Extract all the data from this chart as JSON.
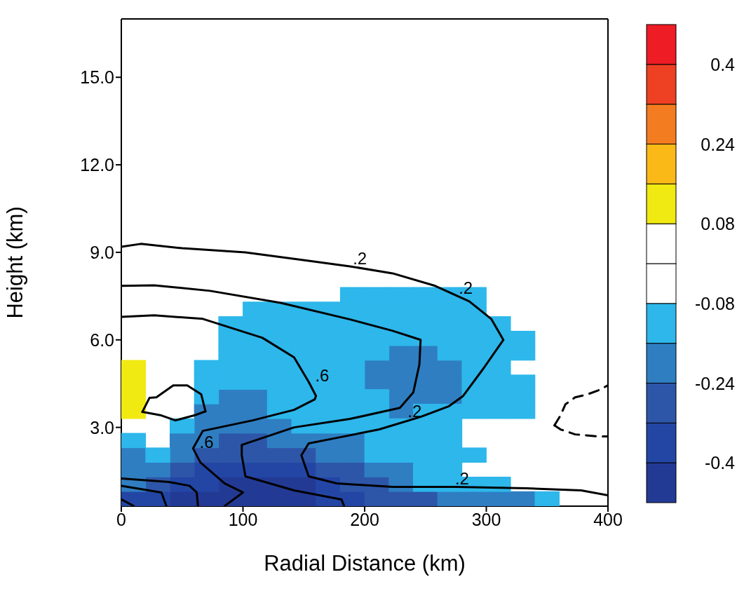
{
  "chart_data": {
    "type": "scatter",
    "xlabel": "Radial Distance (km)",
    "ylabel": "Height (km)",
    "xlim": [
      0,
      400
    ],
    "xticks": [
      0,
      100,
      200,
      300,
      400
    ],
    "ylim": [
      0.3,
      17
    ],
    "yticks": [
      {
        "value": 3,
        "label": "3.0"
      },
      {
        "value": 6,
        "label": "6.0"
      },
      {
        "value": 9,
        "label": "9.0"
      },
      {
        "value": 12,
        "label": "12.0"
      },
      {
        "value": 15,
        "label": "15.0"
      }
    ],
    "clim": [
      -0.48,
      0.48
    ],
    "cticks": [
      0.4,
      0.24,
      0.08,
      -0.08,
      -0.24,
      -0.4
    ],
    "colors": [
      "#233a95",
      "#2346a5",
      "#2e56a8",
      "#2f7ec2",
      "#2db7eb",
      "#ffffff",
      "#ffffff",
      "#f1e912",
      "#fbb917",
      "#f47c20",
      "#ee4123",
      "#ee1c25"
    ],
    "series": [
      {
        "type": "scatter",
        "marker": "square",
        "color": "#f1e912",
        "x": [
          10,
          10,
          10,
          10
        ],
        "values": [
          3.55,
          4.05,
          4.55,
          5.05
        ]
      },
      {
        "type": "scatter",
        "marker": "square",
        "color": "#233a95",
        "x": [
          50,
          70,
          90,
          110,
          130,
          150,
          90,
          110,
          130,
          150
        ],
        "values": [
          0.55,
          0.55,
          0.55,
          0.55,
          0.55,
          0.55,
          1.05,
          1.05,
          1.05,
          1.05
        ]
      },
      {
        "type": "scatter",
        "marker": "square",
        "color": "#2346a5",
        "x": [
          10,
          30,
          170,
          190,
          50,
          70,
          170,
          70,
          90,
          110,
          130,
          150
        ],
        "values": [
          0.55,
          0.55,
          0.55,
          0.55,
          1.05,
          1.05,
          1.05,
          1.55,
          1.55,
          1.55,
          1.55,
          1.55
        ]
      },
      {
        "type": "scatter",
        "marker": "square",
        "color": "#2e56a8",
        "x": [
          210,
          230,
          250,
          30,
          190,
          210,
          50,
          170,
          190,
          70,
          90,
          110,
          130,
          150,
          90,
          110
        ],
        "values": [
          0.55,
          0.55,
          0.55,
          1.05,
          1.05,
          1.05,
          1.55,
          1.55,
          1.55,
          2.05,
          2.05,
          2.05,
          2.05,
          2.05,
          2.55,
          2.55
        ]
      },
      {
        "type": "scatter",
        "marker": "square",
        "color": "#2f7ec2",
        "x": [
          270,
          290,
          310,
          330,
          10,
          230,
          10,
          30,
          210,
          230,
          10,
          50,
          170,
          190,
          50,
          70,
          130,
          150,
          170,
          190,
          70,
          90,
          110,
          130,
          70,
          90,
          110,
          230,
          90,
          110,
          230,
          250,
          270,
          210,
          230,
          250,
          270,
          210,
          230,
          250,
          270,
          230,
          250
        ],
        "values": [
          0.55,
          0.55,
          0.55,
          0.55,
          1.05,
          1.05,
          1.55,
          1.55,
          1.55,
          1.55,
          2.05,
          2.05,
          2.05,
          2.05,
          2.55,
          2.55,
          2.55,
          2.55,
          2.55,
          2.55,
          3.05,
          3.05,
          3.05,
          3.05,
          3.55,
          3.55,
          3.55,
          3.55,
          4.05,
          4.05,
          4.05,
          4.05,
          4.05,
          4.55,
          4.55,
          4.55,
          4.55,
          5.05,
          5.05,
          5.05,
          5.05,
          5.55,
          5.55
        ]
      },
      {
        "type": "scatter",
        "marker": "square",
        "color": "#2db7eb",
        "x": [
          350,
          250,
          270,
          290,
          310,
          250,
          270,
          30,
          210,
          230,
          250,
          270,
          290,
          10,
          210,
          230,
          250,
          270,
          50,
          150,
          170,
          190,
          210,
          230,
          250,
          270,
          130,
          150,
          170,
          190,
          210,
          250,
          270,
          290,
          310,
          330,
          70,
          130,
          150,
          170,
          190,
          210,
          290,
          310,
          330,
          70,
          90,
          110,
          130,
          150,
          170,
          190,
          290,
          310,
          330,
          70,
          90,
          110,
          130,
          150,
          170,
          190,
          290,
          310,
          90,
          110,
          130,
          150,
          170,
          190,
          210,
          270,
          290,
          310,
          330,
          90,
          110,
          130,
          150,
          170,
          190,
          210,
          230,
          250,
          270,
          290,
          310,
          330,
          90,
          110,
          130,
          150,
          170,
          190,
          210,
          230,
          250,
          270,
          290,
          310,
          110,
          130,
          150,
          170,
          190,
          210,
          230,
          250,
          270,
          290,
          190,
          210,
          230,
          250,
          270,
          290
        ],
        "values": [
          0.55,
          1.05,
          1.05,
          1.05,
          1.05,
          1.55,
          1.55,
          2.05,
          2.05,
          2.05,
          2.05,
          2.05,
          2.05,
          2.55,
          2.55,
          2.55,
          2.55,
          2.55,
          3.05,
          3.05,
          3.05,
          3.05,
          3.05,
          3.05,
          3.05,
          3.05,
          3.55,
          3.55,
          3.55,
          3.55,
          3.55,
          3.55,
          3.55,
          3.55,
          3.55,
          3.55,
          4.05,
          4.05,
          4.05,
          4.05,
          4.05,
          4.05,
          4.05,
          4.05,
          4.05,
          4.55,
          4.55,
          4.55,
          4.55,
          4.55,
          4.55,
          4.55,
          4.55,
          4.55,
          4.55,
          5.05,
          5.05,
          5.05,
          5.05,
          5.05,
          5.05,
          5.05,
          5.05,
          5.05,
          5.55,
          5.55,
          5.55,
          5.55,
          5.55,
          5.55,
          5.55,
          5.55,
          5.55,
          5.55,
          5.55,
          6.05,
          6.05,
          6.05,
          6.05,
          6.05,
          6.05,
          6.05,
          6.05,
          6.05,
          6.05,
          6.05,
          6.05,
          6.05,
          6.55,
          6.55,
          6.55,
          6.55,
          6.55,
          6.55,
          6.55,
          6.55,
          6.55,
          6.55,
          6.55,
          6.55,
          7.05,
          7.05,
          7.05,
          7.05,
          7.05,
          7.05,
          7.05,
          7.05,
          7.05,
          7.05,
          7.55,
          7.55,
          7.55,
          7.55,
          7.55,
          7.55
        ]
      },
      {
        "type": "line",
        "color": "#000000",
        "line_style": "solid",
        "x": [
          0,
          16,
          50,
          102,
          154,
          188,
          223,
          258,
          286,
          304,
          314,
          298,
          281,
          269,
          246,
          212,
          177,
          154,
          148,
          154,
          177,
          223,
          275,
          333,
          378,
          400
        ],
        "values": [
          9.19,
          9.29,
          9.14,
          9.0,
          8.71,
          8.52,
          8.28,
          7.85,
          7.32,
          6.72,
          6.0,
          5.04,
          4.08,
          3.72,
          3.36,
          2.93,
          2.64,
          2.45,
          2.04,
          1.32,
          1.08,
          0.96,
          0.96,
          0.91,
          0.84,
          0.67
        ]
      },
      {
        "type": "line",
        "color": "#000000",
        "line_style": "solid",
        "x": [
          0,
          27,
          73,
          131,
          188,
          223,
          246,
          245,
          240,
          229,
          188,
          142,
          99,
          99,
          102,
          142,
          181,
          183
        ],
        "values": [
          7.85,
          7.87,
          7.68,
          7.27,
          6.7,
          6.31,
          6.0,
          5.16,
          4.2,
          3.67,
          3.29,
          3.0,
          2.4,
          2.04,
          1.32,
          0.84,
          0.53,
          0.31
        ]
      },
      {
        "type": "line",
        "color": "#000000",
        "line_style": "solid",
        "x": [
          0,
          27,
          67,
          116,
          142,
          154,
          160,
          159,
          142,
          108,
          67,
          59,
          65,
          85,
          100,
          85
        ],
        "values": [
          6.79,
          6.84,
          6.72,
          6.07,
          5.4,
          4.56,
          4.08,
          3.96,
          3.6,
          3.24,
          2.88,
          2.28,
          1.8,
          1.08,
          0.77,
          0.31
        ]
      },
      {
        "type": "line",
        "color": "#000000",
        "line_style": "solid",
        "x": [
          0,
          39,
          56,
          62,
          63
        ],
        "values": [
          1.25,
          1.13,
          1.0,
          0.77,
          0.31
        ]
      },
      {
        "type": "line",
        "color": "#000000",
        "line_style": "solid",
        "x": [
          0,
          33,
          37
        ],
        "values": [
          1.0,
          0.77,
          0.31
        ]
      },
      {
        "type": "line",
        "color": "#000000",
        "line_style": "solid",
        "x": [
          0,
          10
        ],
        "values": [
          0.53,
          0.31
        ]
      },
      {
        "type": "line",
        "color": "#000000",
        "line_style": "solid",
        "x": [
          17.3,
          23.1,
          28.8,
          42.7,
          54.2,
          65.7,
          69.2
        ],
        "values": [
          3.53,
          4.01,
          4.03,
          4.44,
          4.44,
          4.13,
          3.55
        ]
      },
      {
        "type": "line",
        "color": "#000000",
        "line_style": "solid",
        "x": [
          17.3,
          32.9,
          44.4,
          59.9,
          69.2
        ],
        "values": [
          3.53,
          3.41,
          3.24,
          3.41,
          3.55
        ]
      },
      {
        "type": "line",
        "color": "#000000",
        "line_style": "dashed",
        "x": [
          356,
          361,
          365,
          373,
          383,
          392,
          400
        ],
        "values": [
          3.07,
          3.41,
          3.79,
          4.03,
          4.13,
          4.27,
          4.44
        ]
      },
      {
        "type": "line",
        "color": "#000000",
        "line_style": "dashed",
        "x": [
          356,
          361,
          373,
          392,
          400
        ],
        "values": [
          3.07,
          2.93,
          2.76,
          2.69,
          2.69
        ]
      }
    ],
    "annotations": [
      {
        "text": ".2",
        "x": 188,
        "y": 8.45
      },
      {
        "text": ".2",
        "x": 275,
        "y": 7.44
      },
      {
        "text": ".2",
        "x": 233,
        "y": 3.2
      },
      {
        "text": ".2",
        "x": 272,
        "y": 0.91
      },
      {
        "text": ".6",
        "x": 157,
        "y": 4.44
      },
      {
        "text": ".6",
        "x": 62,
        "y": 2.16
      }
    ]
  }
}
